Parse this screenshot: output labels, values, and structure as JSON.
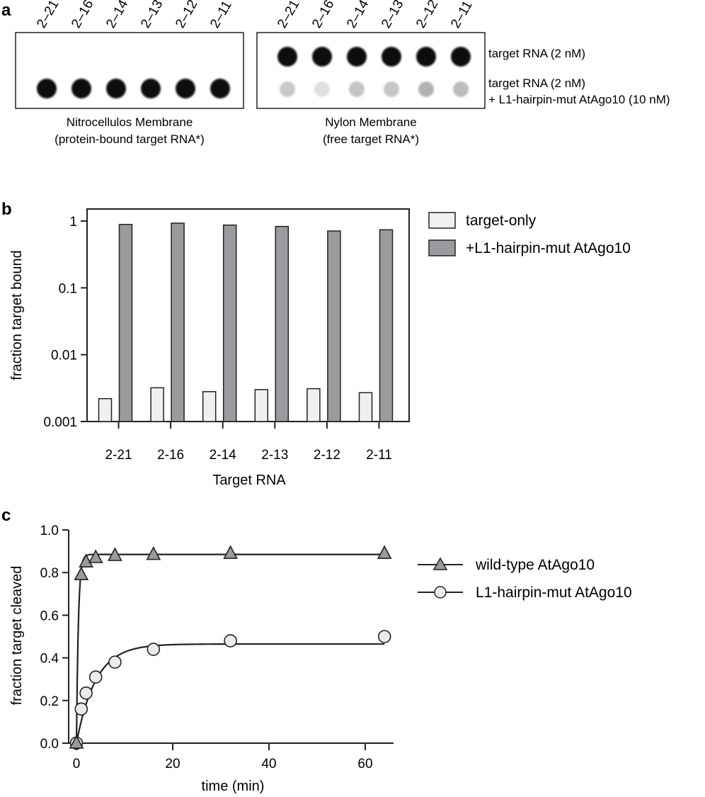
{
  "colors": {
    "target_only": "#f0f0f0",
    "mut": "#9b9b9f",
    "wt_marker": "#9b9b9f",
    "mut_marker": "#eeeaec",
    "dot": "#111111"
  },
  "panel_a": {
    "letter": "a",
    "lanes": [
      "2–21",
      "2–16",
      "2–14",
      "2–13",
      "2–12",
      "2–11"
    ],
    "left_membrane": {
      "caption1": "Nitrocellulos Membrane",
      "caption2": "(protein-bound target RNA*)"
    },
    "right_membrane": {
      "caption1": "Nylon Membrane",
      "caption2": "(free target RNA*)"
    },
    "row1_label": "target RNA (2 nM)",
    "row2_label1": "target RNA (2 nM)",
    "row2_label2": "+ L1-hairpin-mut AtAgo10 (10 nM)",
    "nitro_row1": [
      0,
      0,
      0,
      0,
      0,
      0
    ],
    "nitro_row2": [
      1.0,
      1.0,
      1.0,
      1.0,
      0.95,
      0.9
    ],
    "nylon_row1": [
      1.0,
      1.0,
      1.0,
      1.0,
      1.0,
      1.0
    ],
    "nylon_row2": [
      0.18,
      0.06,
      0.2,
      0.2,
      0.3,
      0.25
    ]
  },
  "panel_b": {
    "letter": "b"
  },
  "panel_c": {
    "letter": "c"
  },
  "chart_data": [
    {
      "type": "bar",
      "categories": [
        "2-21",
        "2-16",
        "2-14",
        "2-13",
        "2-12",
        "2-11"
      ],
      "series": [
        {
          "name": "target-only",
          "values": [
            0.0022,
            0.0032,
            0.0028,
            0.003,
            0.0031,
            0.0027
          ]
        },
        {
          "name": "+L1-hairpin-mut AtAgo10",
          "values": [
            0.89,
            0.93,
            0.87,
            0.83,
            0.71,
            0.74
          ]
        }
      ],
      "xlabel": "Target RNA",
      "ylabel": "fraction target bound",
      "yscale": "log",
      "ylim": [
        0.001,
        1.5
      ],
      "yticks": [
        "0.001",
        "0.01",
        "0.1",
        "1"
      ],
      "legend": "top-right"
    },
    {
      "type": "scatter",
      "xlabel": "time (min)",
      "ylabel": "fraction target cleaved",
      "xlim": [
        -1,
        66
      ],
      "ylim": [
        0,
        1.0
      ],
      "xticks": [
        "0",
        "20",
        "40",
        "60"
      ],
      "yticks": [
        "0.0",
        "0.2",
        "0.4",
        "0.6",
        "0.8",
        "1.0"
      ],
      "legend": "top-right",
      "series": [
        {
          "name": "wild-type AtAgo10",
          "marker": "triangle",
          "x": [
            0,
            1,
            2,
            4,
            8,
            16,
            32,
            64
          ],
          "y": [
            0.0,
            0.79,
            0.85,
            0.87,
            0.88,
            0.885,
            0.89,
            0.89
          ],
          "fit": {
            "plateau": 0.885,
            "k": 2.5
          }
        },
        {
          "name": "L1-hairpin-mut AtAgo10",
          "marker": "circle",
          "x": [
            0,
            1,
            2,
            4,
            8,
            16,
            32,
            64
          ],
          "y": [
            0.0,
            0.16,
            0.235,
            0.31,
            0.38,
            0.44,
            0.48,
            0.5
          ],
          "fit": {
            "plateau": 0.465,
            "k": 0.25
          }
        }
      ]
    }
  ]
}
